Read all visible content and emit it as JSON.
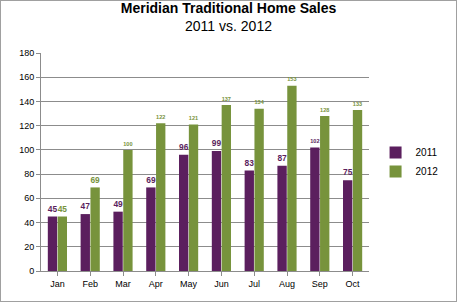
{
  "chart_data": {
    "type": "bar",
    "title": "Meridian Traditional Home Sales",
    "subtitle": "2011 vs. 2012",
    "categories": [
      "Jan",
      "Feb",
      "Mar",
      "Apr",
      "May",
      "Jun",
      "Jul",
      "Aug",
      "Sep",
      "Oct"
    ],
    "series": [
      {
        "name": "2011",
        "color": "#5b1f5e",
        "values": [
          45,
          47,
          49,
          69,
          96,
          99,
          83,
          87,
          102,
          75
        ]
      },
      {
        "name": "2012",
        "color": "#77933c",
        "values": [
          45,
          69,
          100,
          122,
          121,
          137,
          134,
          153,
          128,
          133
        ]
      }
    ],
    "ylim": [
      0,
      180
    ],
    "yticks": [
      0,
      20,
      40,
      60,
      80,
      100,
      120,
      140,
      160,
      180
    ],
    "grid": true,
    "legend": "right",
    "data_labels": true
  }
}
